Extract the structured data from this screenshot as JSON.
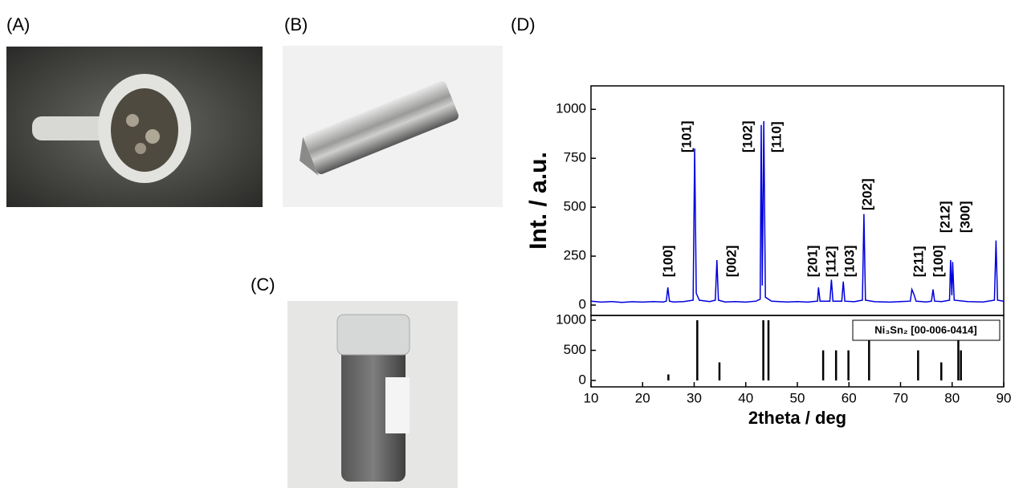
{
  "panel_labels": [
    "(A)",
    "(B)",
    "(C)",
    "(D)"
  ],
  "chart_data": [
    {
      "type": "line",
      "ylabel": "Int. / a.u.",
      "color": "#0000dd",
      "x": [
        10,
        12,
        14,
        16,
        18,
        20,
        22,
        24,
        24.6,
        24.9,
        25.2,
        26,
        28,
        29.8,
        30.1,
        30.4,
        31,
        33,
        34.1,
        34.4,
        34.7,
        36,
        38,
        40,
        42,
        42.8,
        43.0,
        43.2,
        43.5,
        43.8,
        45,
        48,
        50,
        52,
        53.9,
        54.1,
        54.4,
        56.3,
        56.6,
        56.9,
        58.6,
        58.9,
        59.2,
        61,
        62.6,
        62.9,
        63.2,
        65,
        68,
        70,
        71.9,
        72.2,
        72.6,
        73.0,
        75,
        76.0,
        76.3,
        76.6,
        78,
        79.5,
        79.7,
        79.95,
        80.1,
        80.4,
        83,
        86,
        88.2,
        88.5,
        88.8,
        90
      ],
      "values": [
        20,
        15,
        18,
        14,
        17,
        15,
        18,
        16,
        20,
        90,
        20,
        16,
        18,
        25,
        800,
        60,
        25,
        18,
        25,
        230,
        25,
        16,
        18,
        15,
        20,
        30,
        920,
        100,
        940,
        40,
        20,
        16,
        18,
        15,
        20,
        90,
        20,
        20,
        130,
        20,
        20,
        120,
        20,
        17,
        25,
        465,
        25,
        17,
        15,
        18,
        20,
        80,
        55,
        20,
        16,
        20,
        80,
        20,
        18,
        25,
        230,
        50,
        220,
        25,
        18,
        16,
        25,
        330,
        25,
        20
      ],
      "xlim": [
        10,
        90
      ],
      "ylim": [
        -53,
        1120
      ],
      "yticks": [
        0,
        250,
        500,
        750,
        1000
      ],
      "annotations": [
        {
          "text": "[100]",
          "x": 25.1,
          "y": 143
        },
        {
          "text": "[101]",
          "x": 28.7,
          "y": 779
        },
        {
          "text": "[002]",
          "x": 37.4,
          "y": 143
        },
        {
          "text": "[102]",
          "x": 40.5,
          "y": 779
        },
        {
          "text": "[110]",
          "x": 46.1,
          "y": 779
        },
        {
          "text": "[201]",
          "x": 53.1,
          "y": 143
        },
        {
          "text": "[112]",
          "x": 56.7,
          "y": 143
        },
        {
          "text": "[103]",
          "x": 60.3,
          "y": 143
        },
        {
          "text": "[202]",
          "x": 63.7,
          "y": 484
        },
        {
          "text": "[211]",
          "x": 73.7,
          "y": 143
        },
        {
          "text": "[100]",
          "x": 77.5,
          "y": 143
        },
        {
          "text": "[212]",
          "x": 78.8,
          "y": 369
        },
        {
          "text": "[300]",
          "x": 82.7,
          "y": 369
        }
      ]
    },
    {
      "type": "stem",
      "xlabel": "2theta / deg",
      "legend": "Ni₃Sn₂ [00-006-0414]",
      "color": "#000000",
      "x": [
        25.0,
        30.6,
        34.9,
        43.4,
        44.4,
        55.0,
        57.5,
        59.9,
        63.9,
        73.4,
        77.9,
        81.2,
        81.7
      ],
      "values": [
        100,
        1000,
        300,
        1000,
        1000,
        500,
        500,
        500,
        700,
        500,
        300,
        1000,
        500
      ],
      "xlim": [
        10,
        90
      ],
      "ylim": [
        -107,
        1080
      ],
      "xticks": [
        10,
        20,
        30,
        40,
        50,
        60,
        70,
        80,
        90
      ],
      "yticks": [
        0,
        500,
        1000
      ]
    }
  ]
}
